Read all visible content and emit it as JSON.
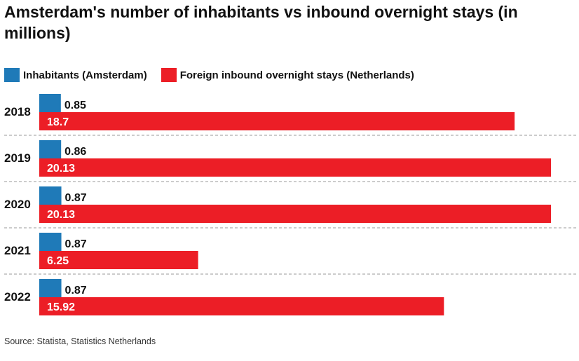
{
  "title": "Amsterdam's number of inhabitants vs inbound overnight stays (in millions)",
  "source": "Source: Statista, Statistics Netherlands",
  "colors": {
    "inhabitants": "#1f7ab8",
    "overnight_stays": "#ec1e26",
    "separator": "#9a9a9a"
  },
  "chart_data": {
    "type": "bar",
    "orientation": "horizontal",
    "categories": [
      "2018",
      "2019",
      "2020",
      "2021",
      "2022"
    ],
    "series": [
      {
        "name": "Inhabitants (Amsterdam)",
        "values": [
          0.85,
          0.86,
          0.87,
          0.87,
          0.87
        ],
        "labels": [
          "0.85",
          "0.86",
          "0.87",
          "0.87",
          "0.87"
        ]
      },
      {
        "name": "Foreign inbound overnight stays (Netherlands)",
        "values": [
          18.7,
          20.13,
          20.13,
          6.25,
          15.92
        ],
        "labels": [
          "18.7",
          "20.13",
          "20.13",
          "6.25",
          "15.92"
        ]
      }
    ],
    "legend": "top-left",
    "grid": false
  }
}
